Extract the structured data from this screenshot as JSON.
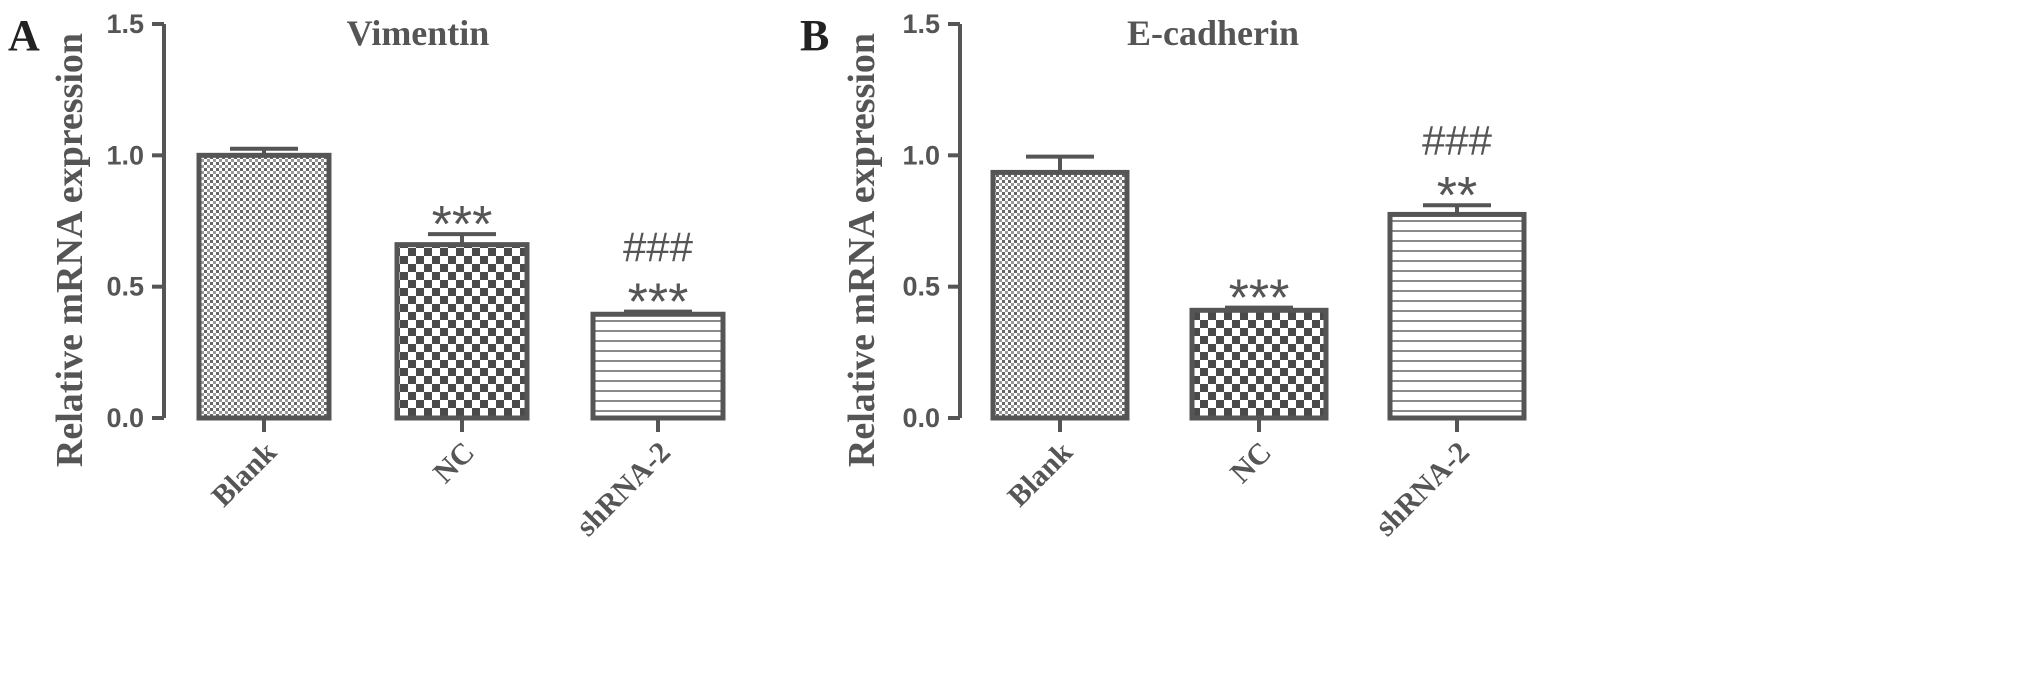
{
  "chart_data": [
    {
      "type": "bar",
      "panel": "A",
      "title": "Vimentin",
      "ylabel": "Relative mRNA expression",
      "xlabel": "",
      "ylim": [
        0,
        1.5
      ],
      "yticks": [
        "0.0",
        "0.5",
        "1.0",
        "1.5"
      ],
      "categories": [
        "Blank",
        "NC",
        "shRNA-2"
      ],
      "values": [
        1.0,
        0.66,
        0.395
      ],
      "errors": [
        0.025,
        0.04,
        0.01
      ],
      "annotations": [
        {
          "lines": []
        },
        {
          "lines": [
            "***"
          ]
        },
        {
          "lines": [
            "###",
            "***"
          ]
        }
      ],
      "patterns": [
        "fine-dots",
        "checker",
        "horizontal-lines"
      ],
      "grid": false,
      "legend": "none"
    },
    {
      "type": "bar",
      "panel": "B",
      "title": "E-cadherin",
      "ylabel": "Relative mRNA expression",
      "xlabel": "",
      "ylim": [
        0,
        1.5
      ],
      "yticks": [
        "0.0",
        "0.5",
        "1.0",
        "1.5"
      ],
      "categories": [
        "Blank",
        "NC",
        "shRNA-2"
      ],
      "values": [
        0.935,
        0.41,
        0.775
      ],
      "errors": [
        0.06,
        0.01,
        0.035
      ],
      "annotations": [
        {
          "lines": []
        },
        {
          "lines": [
            "***"
          ]
        },
        {
          "lines": [
            "###",
            "**"
          ]
        }
      ],
      "patterns": [
        "fine-dots",
        "checker",
        "horizontal-lines"
      ],
      "grid": false,
      "legend": "none"
    }
  ],
  "colors": {
    "ink": "#555555",
    "background": "#ffffff"
  }
}
